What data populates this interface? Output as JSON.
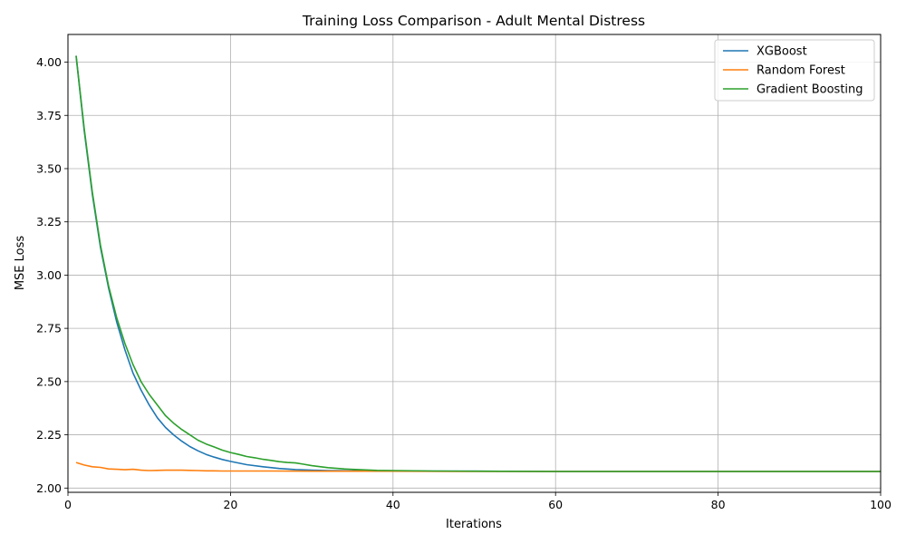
{
  "chart_data": {
    "type": "line",
    "title": "Training Loss Comparison - Adult Mental Distress",
    "xlabel": "Iterations",
    "ylabel": "MSE Loss",
    "xlim": [
      0,
      100
    ],
    "ylim": [
      1.98,
      4.13
    ],
    "xticks": [
      0,
      20,
      40,
      60,
      80,
      100
    ],
    "yticks": [
      2.0,
      2.25,
      2.5,
      2.75,
      3.0,
      3.25,
      3.5,
      3.75,
      4.0
    ],
    "ytick_labels": [
      "2.00",
      "2.25",
      "2.50",
      "2.75",
      "3.00",
      "3.25",
      "3.50",
      "3.75",
      "4.00"
    ],
    "grid": true,
    "legend_position": "top-right",
    "series": [
      {
        "name": "XGBoost",
        "color": "#1f77b4",
        "x": [
          1,
          2,
          3,
          4,
          5,
          6,
          7,
          8,
          9,
          10,
          11,
          12,
          13,
          14,
          15,
          16,
          17,
          18,
          19,
          20,
          22,
          24,
          26,
          28,
          30,
          32,
          35,
          40,
          45,
          50,
          60,
          70,
          80,
          90,
          100
        ],
        "y": [
          4.03,
          3.68,
          3.38,
          3.13,
          2.94,
          2.78,
          2.65,
          2.54,
          2.46,
          2.39,
          2.33,
          2.285,
          2.25,
          2.22,
          2.195,
          2.175,
          2.158,
          2.145,
          2.134,
          2.125,
          2.11,
          2.1,
          2.092,
          2.087,
          2.084,
          2.082,
          2.081,
          2.08,
          2.079,
          2.079,
          2.078,
          2.078,
          2.078,
          2.078,
          2.078
        ]
      },
      {
        "name": "Random Forest",
        "color": "#ff7f0e",
        "x": [
          1,
          2,
          3,
          4,
          5,
          6,
          7,
          8,
          9,
          10,
          11,
          12,
          13,
          14,
          15,
          16,
          17,
          18,
          19,
          20,
          25,
          30,
          40,
          50,
          60,
          70,
          80,
          90,
          100
        ],
        "y": [
          2.12,
          2.108,
          2.1,
          2.097,
          2.09,
          2.088,
          2.086,
          2.088,
          2.084,
          2.082,
          2.083,
          2.084,
          2.084,
          2.084,
          2.083,
          2.082,
          2.081,
          2.081,
          2.08,
          2.08,
          2.08,
          2.079,
          2.079,
          2.078,
          2.078,
          2.078,
          2.078,
          2.078,
          2.078
        ]
      },
      {
        "name": "Gradient Boosting",
        "color": "#2ca02c",
        "x": [
          1,
          2,
          3,
          4,
          5,
          6,
          7,
          8,
          9,
          10,
          11,
          12,
          13,
          14,
          15,
          16,
          17,
          18,
          19,
          20,
          21,
          22,
          23,
          24,
          25,
          26,
          27,
          28,
          29,
          30,
          32,
          34,
          36,
          38,
          40,
          45,
          50,
          60,
          70,
          80,
          90,
          100
        ],
        "y": [
          4.03,
          3.69,
          3.39,
          3.14,
          2.95,
          2.8,
          2.68,
          2.58,
          2.5,
          2.44,
          2.39,
          2.34,
          2.305,
          2.275,
          2.25,
          2.225,
          2.207,
          2.193,
          2.178,
          2.167,
          2.158,
          2.148,
          2.142,
          2.135,
          2.13,
          2.124,
          2.12,
          2.118,
          2.112,
          2.105,
          2.096,
          2.09,
          2.086,
          2.083,
          2.082,
          2.08,
          2.079,
          2.078,
          2.078,
          2.078,
          2.078,
          2.078
        ]
      }
    ]
  }
}
